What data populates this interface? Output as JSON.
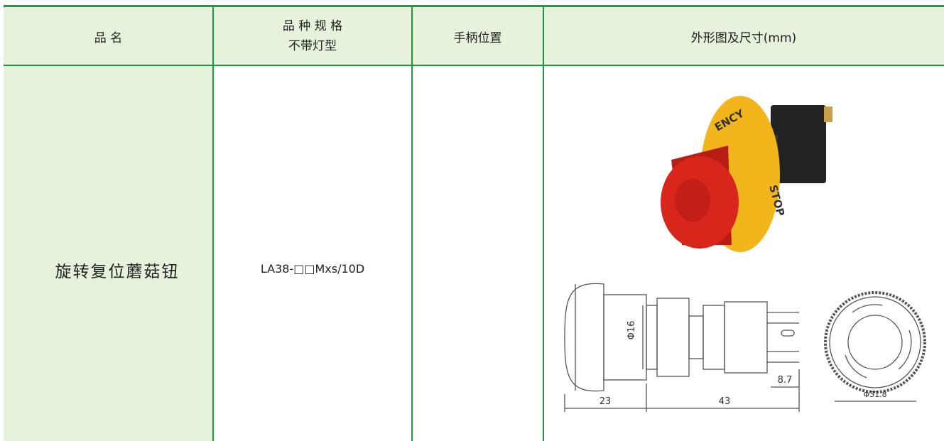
{
  "table": {
    "header": [
      "品 名",
      "品 种 规 格",
      "不带灯型",
      "手柄位置",
      "外形图及尺寸(mm)"
    ],
    "rows": [
      [
        "旋转复位蘑菇钮",
        "LA38-□□Mxs/10D"
      ]
    ]
  },
  "figure": {
    "photo_labels": [
      "ENCY",
      "STOP"
    ],
    "dimensions": [
      "Φ16",
      "8.7",
      "23",
      "43",
      "Φ31.8"
    ]
  }
}
